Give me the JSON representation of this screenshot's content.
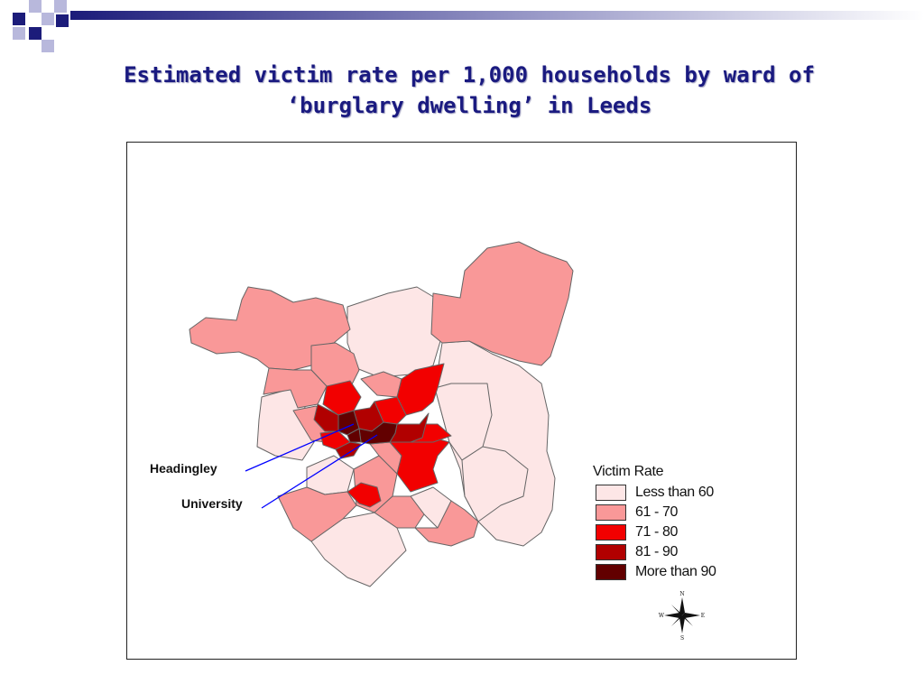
{
  "slide": {
    "title_line1": "Estimated victim rate per 1,000 households by ward of",
    "title_line2": "‘burglary dwelling’ in Leeds"
  },
  "map": {
    "callouts": {
      "headingley": "Headingley",
      "university": "University"
    },
    "legend": {
      "title": "Victim Rate",
      "items": [
        {
          "label": "Less than 60",
          "color": "#fde6e6"
        },
        {
          "label": "61 - 70",
          "color": "#f99898"
        },
        {
          "label": "71 - 80",
          "color": "#f20000"
        },
        {
          "label": "81 - 90",
          "color": "#b10000"
        },
        {
          "label": "More than 90",
          "color": "#620000"
        }
      ]
    },
    "compass": {
      "n": "N",
      "s": "S",
      "e": "E",
      "w": "W"
    },
    "callout_line_color": "#0000ff",
    "ward_border_color": "#666666"
  }
}
